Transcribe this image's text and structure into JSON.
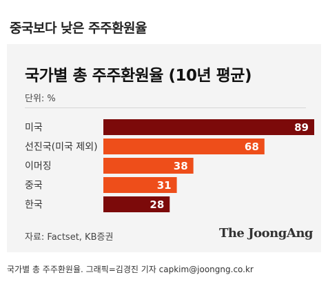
{
  "headline": "중국보다 낮은 주주환원율",
  "card": {
    "unit_label": "단위: %",
    "source_label": "자료: Factset, KB증권",
    "brand": "The JoongAng"
  },
  "caption": "국가별 총 주주환원율. 그래픽=김경진 기자 capkim@joongng.co.kr",
  "colors": {
    "dark_red": "#7c0a0a",
    "orange": "#ee4e1a",
    "label_text": "#ffffff"
  },
  "chart_data": {
    "type": "bar",
    "orientation": "horizontal",
    "title": "국가별 총 주주환원율 (10년 평균)",
    "unit": "%",
    "categories": [
      "미국",
      "선진국(미국 제외)",
      "이머징",
      "중국",
      "한국"
    ],
    "values": [
      89,
      68,
      38,
      31,
      28
    ],
    "bar_colors": [
      "#7c0a0a",
      "#ee4e1a",
      "#ee4e1a",
      "#ee4e1a",
      "#7c0a0a"
    ],
    "xlim": [
      0,
      89
    ],
    "grid": false,
    "legend": "none"
  }
}
